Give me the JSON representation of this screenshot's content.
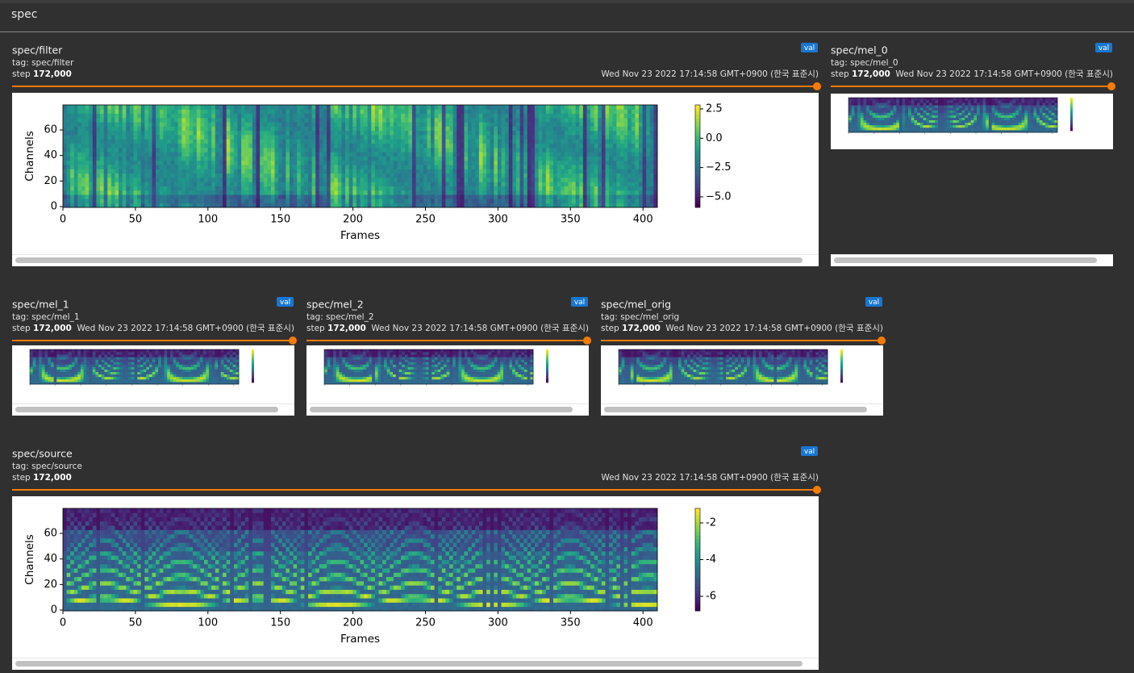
{
  "header": {
    "title": "spec"
  },
  "cards": [
    {
      "title": "spec/filter",
      "tag": "tag: spec/filter",
      "step_label": "step",
      "step": "172,000",
      "time": "Wed Nov 23 2022 17:14:58 GMT+0900 (한국 표준시)",
      "badge": "val",
      "plot": {
        "xlabel": "Frames",
        "ylabel": "Channels",
        "xticks": [
          0,
          50,
          100,
          150,
          200,
          250,
          300,
          350,
          400
        ],
        "yticks": [
          0,
          20,
          40,
          60
        ],
        "cticks": [
          {
            "value": 2.5,
            "label": "2.5"
          },
          {
            "value": 0,
            "label": "0.0"
          },
          {
            "value": -2.5,
            "label": "−2.5"
          },
          {
            "value": -5,
            "label": "−5.0"
          }
        ]
      }
    },
    {
      "title": "spec/mel_0",
      "tag": "tag: spec/mel_0",
      "step_label": "step",
      "step": "172,000",
      "time": "Wed Nov 23 2022 17:14:58 GMT+0900 (한국 표준시)",
      "badge": "val"
    },
    {
      "title": "spec/mel_1",
      "tag": "tag: spec/mel_1",
      "step_label": "step",
      "step": "172,000",
      "time": "Wed Nov 23 2022 17:14:58 GMT+0900 (한국 표준시)",
      "badge": "val"
    },
    {
      "title": "spec/mel_2",
      "tag": "tag: spec/mel_2",
      "step_label": "step",
      "step": "172,000",
      "time": "Wed Nov 23 2022 17:14:58 GMT+0900 (한국 표준시)",
      "badge": "val"
    },
    {
      "title": "spec/mel_orig",
      "tag": "tag: spec/mel_orig",
      "step_label": "step",
      "step": "172,000",
      "time": "Wed Nov 23 2022 17:14:58 GMT+0900 (한국 표준시)",
      "badge": "val"
    },
    {
      "title": "spec/source",
      "tag": "tag: spec/source",
      "step_label": "step",
      "step": "172,000",
      "time": "Wed Nov 23 2022 17:14:58 GMT+0900 (한국 표준시)",
      "badge": "val",
      "plot": {
        "xlabel": "Frames",
        "ylabel": "Channels",
        "xticks": [
          0,
          50,
          100,
          150,
          200,
          250,
          300,
          350,
          400
        ],
        "yticks": [
          0,
          20,
          40,
          60
        ],
        "cticks": [
          -2,
          -4,
          -6
        ]
      }
    }
  ]
}
